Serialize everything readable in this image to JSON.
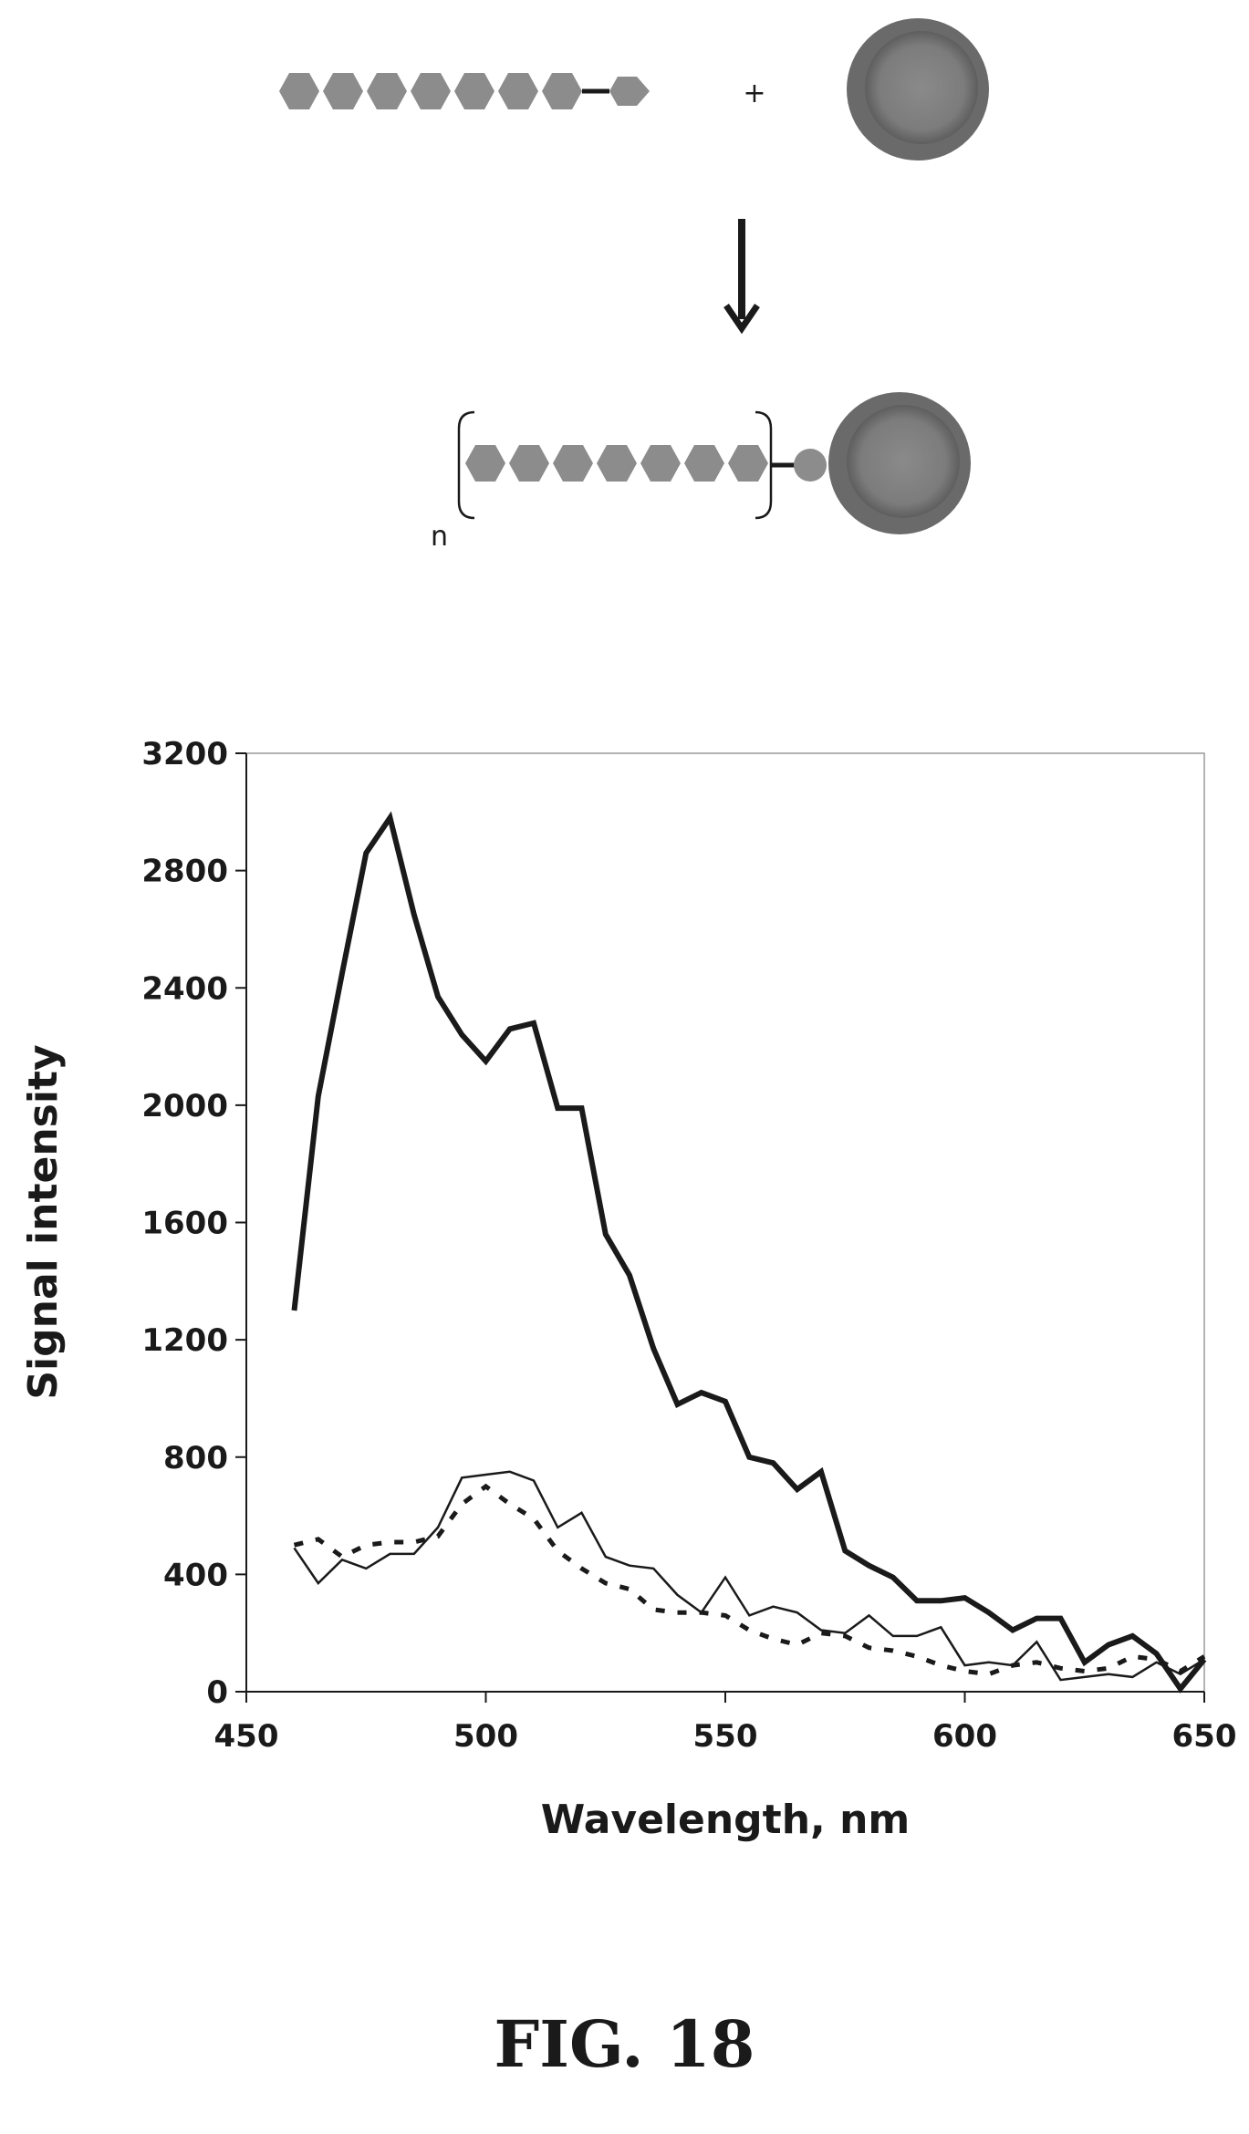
{
  "scheme": {
    "plus_sign": "+",
    "repeat_label": "n"
  },
  "figure_label": "FIG. 18",
  "chart_data": {
    "type": "line",
    "title": "",
    "xlabel": "Wavelength, nm",
    "ylabel": "Signal intensity",
    "xlim": [
      450,
      650
    ],
    "ylim": [
      0,
      3200
    ],
    "xticks": [
      450,
      500,
      550,
      600,
      650
    ],
    "yticks": [
      0,
      400,
      800,
      1200,
      1600,
      2000,
      2400,
      2800,
      3200
    ],
    "grid": false,
    "legend": "none",
    "x": [
      460,
      465,
      470,
      475,
      480,
      485,
      490,
      495,
      500,
      505,
      510,
      515,
      520,
      525,
      530,
      535,
      540,
      545,
      550,
      555,
      560,
      565,
      570,
      575,
      580,
      585,
      590,
      595,
      600,
      605,
      610,
      615,
      620,
      625,
      630,
      635,
      640,
      645,
      650
    ],
    "series": [
      {
        "style": "thick-solid",
        "values": [
          1300,
          2030,
          2450,
          2860,
          2980,
          2650,
          2370,
          2240,
          2150,
          2260,
          2280,
          1990,
          1990,
          1560,
          1420,
          1170,
          980,
          1020,
          990,
          800,
          780,
          690,
          750,
          480,
          430,
          390,
          310,
          310,
          320,
          270,
          210,
          250,
          250,
          100,
          160,
          190,
          130,
          10,
          110
        ]
      },
      {
        "style": "thin-solid",
        "values": [
          490,
          370,
          450,
          420,
          470,
          470,
          560,
          730,
          740,
          750,
          720,
          560,
          610,
          460,
          430,
          420,
          330,
          270,
          390,
          260,
          290,
          270,
          210,
          200,
          260,
          190,
          190,
          220,
          90,
          100,
          90,
          170,
          40,
          50,
          60,
          50,
          100,
          60,
          110
        ]
      },
      {
        "style": "dotted",
        "values": [
          500,
          520,
          460,
          500,
          510,
          510,
          530,
          640,
          700,
          640,
          590,
          480,
          420,
          370,
          350,
          280,
          270,
          270,
          260,
          210,
          180,
          160,
          200,
          190,
          150,
          140,
          120,
          90,
          70,
          60,
          90,
          100,
          80,
          70,
          80,
          120,
          110,
          70,
          120
        ]
      }
    ]
  }
}
